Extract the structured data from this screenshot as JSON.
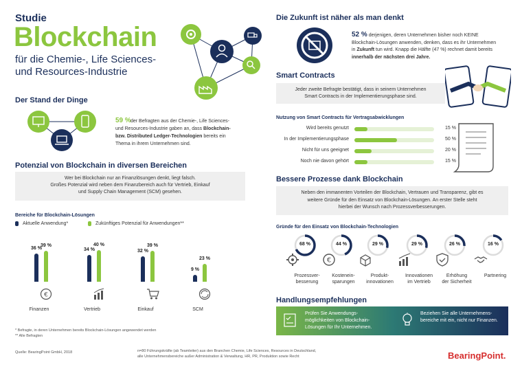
{
  "header": {
    "studie": "Studie",
    "title": "Blockchain",
    "subtitle_1": "für die Chemie-, Life Sciences-",
    "subtitle_2": "und Resources-Industrie"
  },
  "stand": {
    "heading": "Der Stand der Dinge",
    "pct": "59 %",
    "text_1": "der Befragten aus der Chemie-, Life Sciences-",
    "text_2": "und Resources-Industrie gaben an, dass",
    "text_2b": "Blockchain-",
    "text_3b": "bzw. Distributed Ledger-Technologien",
    "text_3": "bereits ein",
    "text_4": "Thema in ihrem Unternehmen sind."
  },
  "potential": {
    "heading": "Potenzial von Blockchain in diversen Bereichen",
    "box_1": "Wer bei Blockchain nur an Finanzlösungen denkt, liegt falsch.",
    "box_2": "Großes Potenzial wird neben dem Finanzbereich auch für Vertrieb, Einkauf",
    "box_3": "und Supply Chain Management (SCM) gesehen.",
    "chart_heading": "Bereiche für Blockchain-Lösungen",
    "legend_current": "Aktuelle Anwendung*",
    "legend_future": "Zukünftiges Potenzial für Anwendungen**"
  },
  "chart_data": {
    "type": "bar",
    "title": "Bereiche für Blockchain-Lösungen",
    "categories": [
      "Finanzen",
      "Vertrieb",
      "Einkauf",
      "SCM"
    ],
    "series": [
      {
        "name": "Aktuelle Anwendung*",
        "values": [
          36,
          34,
          32,
          9
        ],
        "labels": [
          "36 %",
          "34 %",
          "32 %",
          "9 %"
        ]
      },
      {
        "name": "Zukünftiges Potenzial für Anwendungen**",
        "values": [
          39,
          40,
          39,
          23
        ],
        "labels": [
          "39 %",
          "40 %",
          "39 %",
          "23 %"
        ]
      }
    ],
    "colors": [
      "#1b2f5b",
      "#8cc63f"
    ]
  },
  "footnotes": {
    "f1": "* Befragte, in deren Unternehmen bereits Blockchain-Lösungen angewendet werden",
    "f2": "** Alle Befragten",
    "source": "Quelle: BearingPoint GmbH, 2018",
    "n_1": "n=80 Führungskräfte (ab Teamleiter) aus den Branchen Chemie, Life Sciences, Resources in Deutschland,",
    "n_2": "alle Unternehmensbereiche außer Administration & Verwaltung, HR, PR, Produktion sowie Recht"
  },
  "zukunft": {
    "heading": "Die Zukunft ist näher als man denkt",
    "pct": "52 %",
    "t1": "derjenigen, deren Unternehmen bisher noch KEINE",
    "t2": "Blockchain-Lösungen anwenden, denken, dass es ihr Unternehmen",
    "t3a": "in",
    "t3b": "Zukunft",
    "t3c": "tun wird. Knapp die Hälfte (47 %) rechnet damit bereits",
    "t4": "innerhalb der nächsten drei Jahre."
  },
  "smart": {
    "heading": "Smart Contracts",
    "box_1": "Jeder zweite Befragte bestätigt, dass in seinem Unternehmen",
    "box_2": "Smart Contracts in der Implementierungsphase sind.",
    "sub": "Nutzung von Smart Contracts für Vertragsabwicklungen",
    "rows": [
      {
        "label": "Wird bereits genutzt",
        "value": 15,
        "text": "15 %"
      },
      {
        "label": "In der Implementierungsphase",
        "value": 50,
        "text": "50 %"
      },
      {
        "label": "Nicht für uns geeignet",
        "value": 20,
        "text": "20 %"
      },
      {
        "label": "Noch nie davon gehört",
        "value": 15,
        "text": "15 %"
      }
    ]
  },
  "prozesse": {
    "heading": "Bessere Prozesse dank Blockchain",
    "box_1": "Neben den immanenten Vorteilen der Blockchain, Vertrauen und Transparenz, gibt es",
    "box_2": "weitere Gründe für den Einsatz von Blockchain-Lösungen. An erster Stelle steht",
    "box_3": "hierbei der Wunsch nach Prozessverbesserungen.",
    "sub": "Gründe für den Einsatz von Blockchain-Technologien",
    "items": [
      {
        "value": 68,
        "pct": "68 %",
        "l1": "Prozessver-",
        "l2": "besserung",
        "icon": "gear-icon"
      },
      {
        "value": 44,
        "pct": "44 %",
        "l1": "Kostenein-",
        "l2": "sparungen",
        "icon": "euro-icon"
      },
      {
        "value": 29,
        "pct": "29 %",
        "l1": "Produkt-",
        "l2": "innovationen",
        "icon": "box-icon"
      },
      {
        "value": 29,
        "pct": "29 %",
        "l1": "Innovationen",
        "l2": "im Vertrieb",
        "icon": "growth-icon"
      },
      {
        "value": 26,
        "pct": "26 %",
        "l1": "Erhöhung",
        "l2": "der Sicherheit",
        "icon": "shield-icon"
      },
      {
        "value": 16,
        "pct": "16 %",
        "l1": "Partnering",
        "l2": "",
        "icon": "handshake-icon"
      }
    ]
  },
  "handlung": {
    "heading": "Handlungsempfehlungen",
    "r1_1": "Prüfen Sie Anwendungs-",
    "r1_2": "möglichkeiten von Blockchain-",
    "r1_3": "Lösungen für Ihr Unternehmen.",
    "r2_1": "Beziehen Sie alle Unternehmens-",
    "r2_2": "bereiche mit ein, nicht nur Finanzen."
  },
  "brand": "BearingPoint."
}
